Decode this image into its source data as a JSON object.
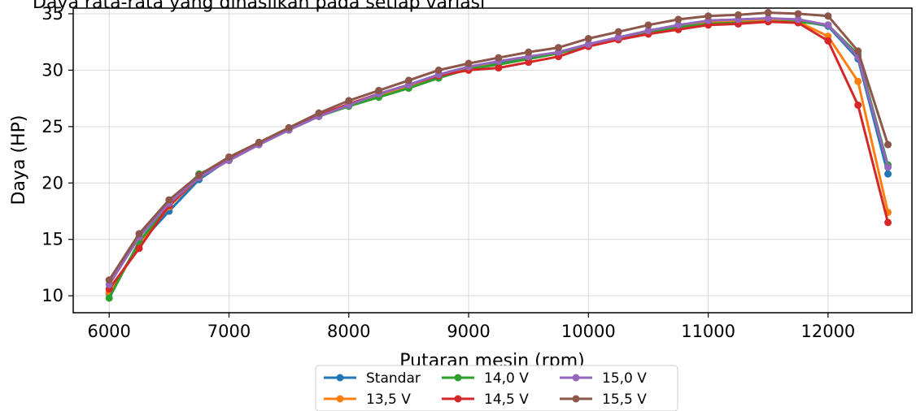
{
  "chart_data": {
    "type": "line",
    "title": "Daya rata-rata yang dihasilkan pada setiap variasi",
    "xlabel": "Putaran mesin (rpm)",
    "ylabel": "Daya (HP)",
    "xlim": [
      5700,
      12700
    ],
    "ylim": [
      8.5,
      35.5
    ],
    "xticks": [
      6000,
      7000,
      8000,
      9000,
      10000,
      11000,
      12000
    ],
    "yticks": [
      10,
      15,
      20,
      25,
      30,
      35
    ],
    "grid": true,
    "legend_position": "bottom-center",
    "legend_columns": 3,
    "x": [
      6000,
      6250,
      6500,
      6750,
      7000,
      7250,
      7500,
      7750,
      8000,
      8250,
      8500,
      8750,
      9000,
      9250,
      9500,
      9750,
      10000,
      10250,
      10500,
      10750,
      11000,
      11250,
      11500,
      11750,
      12000,
      12250,
      12500
    ],
    "series": [
      {
        "name": "Standar",
        "color": "#1f77b4",
        "values": [
          10.2,
          14.6,
          17.5,
          20.3,
          22.1,
          23.5,
          24.7,
          26.0,
          27.0,
          27.9,
          28.7,
          29.6,
          30.3,
          30.7,
          31.1,
          31.6,
          32.3,
          32.9,
          33.5,
          34.0,
          34.3,
          34.4,
          34.5,
          34.4,
          33.9,
          31.0,
          20.8
        ]
      },
      {
        "name": "13,5 V",
        "color": "#ff7f0e",
        "values": [
          10.3,
          14.5,
          17.9,
          20.5,
          22.0,
          23.5,
          24.7,
          26.0,
          26.9,
          27.8,
          28.6,
          29.5,
          30.2,
          30.5,
          31.0,
          31.5,
          32.2,
          32.8,
          33.4,
          33.8,
          34.2,
          34.3,
          34.4,
          34.3,
          33.0,
          29.0,
          17.4
        ]
      },
      {
        "name": "14,0 V",
        "color": "#2ca02c",
        "values": [
          9.8,
          14.8,
          18.0,
          20.8,
          22.0,
          23.4,
          24.7,
          25.9,
          26.8,
          27.6,
          28.4,
          29.3,
          30.1,
          30.5,
          31.0,
          31.5,
          32.2,
          32.8,
          33.4,
          33.8,
          34.1,
          34.2,
          34.3,
          34.3,
          34.0,
          31.4,
          21.6
        ]
      },
      {
        "name": "14,5 V",
        "color": "#d62728",
        "values": [
          10.6,
          14.2,
          18.0,
          20.5,
          22.1,
          23.5,
          24.7,
          26.0,
          27.0,
          27.9,
          28.7,
          29.5,
          30.0,
          30.2,
          30.7,
          31.2,
          32.1,
          32.7,
          33.2,
          33.6,
          34.0,
          34.1,
          34.3,
          34.2,
          32.6,
          26.9,
          16.5
        ]
      },
      {
        "name": "15,0 V",
        "color": "#9467bd",
        "values": [
          11.0,
          15.2,
          18.2,
          20.5,
          22.0,
          23.4,
          24.7,
          25.9,
          26.9,
          27.9,
          28.7,
          29.6,
          30.3,
          30.8,
          31.2,
          31.6,
          32.3,
          32.9,
          33.5,
          34.0,
          34.4,
          34.5,
          34.6,
          34.5,
          34.0,
          31.2,
          21.4
        ]
      },
      {
        "name": "15,5 V",
        "color": "#8c564b",
        "values": [
          11.4,
          15.5,
          18.5,
          20.7,
          22.3,
          23.6,
          24.9,
          26.2,
          27.3,
          28.2,
          29.1,
          30.0,
          30.6,
          31.1,
          31.6,
          32.0,
          32.8,
          33.4,
          34.0,
          34.5,
          34.8,
          34.9,
          35.1,
          35.0,
          34.8,
          31.7,
          23.4
        ]
      }
    ]
  }
}
